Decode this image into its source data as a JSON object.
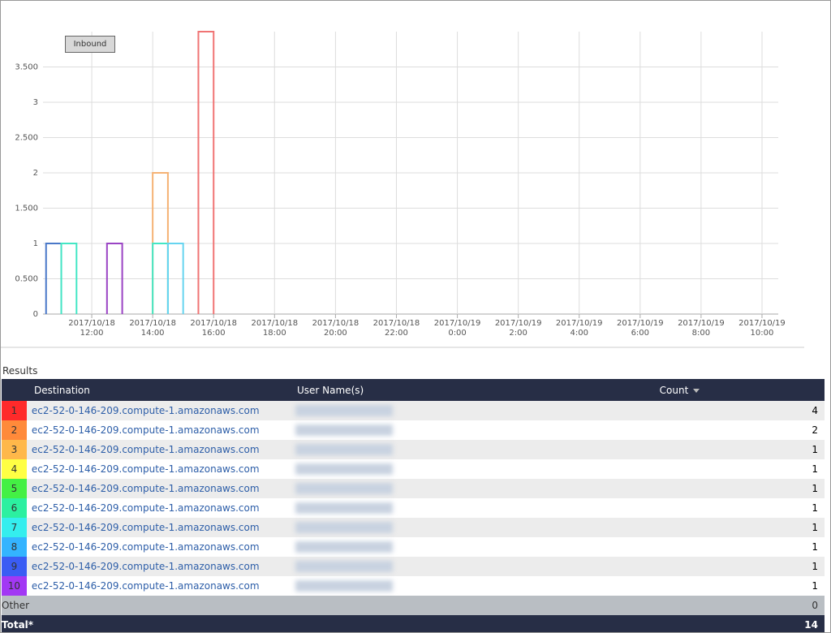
{
  "inbound_button": "Inbound",
  "chart_data": {
    "type": "histogram",
    "xlim": [
      "2017/10/18 10:24",
      "2017/10/19 10:32"
    ],
    "xticks": [
      "2017/10/18 12:00",
      "2017/10/18 14:00",
      "2017/10/18 16:00",
      "2017/10/18 18:00",
      "2017/10/18 20:00",
      "2017/10/18 22:00",
      "2017/10/19 0:00",
      "2017/10/19 2:00",
      "2017/10/19 4:00",
      "2017/10/19 6:00",
      "2017/10/19 8:00",
      "2017/10/19 10:00"
    ],
    "ylim": [
      0,
      4
    ],
    "yticks": [
      0,
      {
        "value": 0.5,
        "label": "0.500"
      },
      1,
      {
        "value": 1.5,
        "label": "1.500"
      },
      2,
      {
        "value": 2.5,
        "label": "2.500"
      },
      3,
      {
        "value": 3.5,
        "label": "3.500"
      }
    ],
    "grid": true,
    "series": [
      {
        "color": "#4a78c8",
        "bins": [
          "2017/10/18 10:30",
          "2017/10/18 11:00"
        ],
        "values": [
          1
        ]
      },
      {
        "color": "#44e6c4",
        "bins": [
          "2017/10/18 11:00",
          "2017/10/18 11:30"
        ],
        "values": [
          1
        ]
      },
      {
        "color": "#9a44c4",
        "bins": [
          "2017/10/18 12:30",
          "2017/10/18 13:00"
        ],
        "values": [
          1
        ]
      },
      {
        "color": "#f5b274",
        "bins": [
          "2017/10/18 14:00",
          "2017/10/18 14:30"
        ],
        "values": [
          2
        ]
      },
      {
        "color": "#44e6c4",
        "bins": [
          "2017/10/18 14:00",
          "2017/10/18 14:30"
        ],
        "values": [
          1
        ]
      },
      {
        "color": "#66d4f0",
        "bins": [
          "2017/10/18 14:30",
          "2017/10/18 15:00"
        ],
        "values": [
          1
        ]
      },
      {
        "color": "#f07474",
        "bins": [
          "2017/10/18 15:30",
          "2017/10/18 16:00"
        ],
        "values": [
          4
        ]
      }
    ]
  },
  "results_label": "Results",
  "table": {
    "columns": [
      "Destination",
      "User Name(s)",
      "Count"
    ],
    "rows": [
      {
        "rank": 1,
        "color": "#ff2a2a",
        "destination": "ec2-52-0-146-209.compute-1.amazonaws.com",
        "count": 4
      },
      {
        "rank": 2,
        "color": "#ff8a3a",
        "destination": "ec2-52-0-146-209.compute-1.amazonaws.com",
        "count": 2
      },
      {
        "rank": 3,
        "color": "#ffb84a",
        "destination": "ec2-52-0-146-209.compute-1.amazonaws.com",
        "count": 1
      },
      {
        "rank": 4,
        "color": "#ffff44",
        "destination": "ec2-52-0-146-209.compute-1.amazonaws.com",
        "count": 1
      },
      {
        "rank": 5,
        "color": "#44f044",
        "destination": "ec2-52-0-146-209.compute-1.amazonaws.com",
        "count": 1
      },
      {
        "rank": 6,
        "color": "#2cf0a0",
        "destination": "ec2-52-0-146-209.compute-1.amazonaws.com",
        "count": 1
      },
      {
        "rank": 7,
        "color": "#34eeee",
        "destination": "ec2-52-0-146-209.compute-1.amazonaws.com",
        "count": 1
      },
      {
        "rank": 8,
        "color": "#34b4ff",
        "destination": "ec2-52-0-146-209.compute-1.amazonaws.com",
        "count": 1
      },
      {
        "rank": 9,
        "color": "#3a5cf4",
        "destination": "ec2-52-0-146-209.compute-1.amazonaws.com",
        "count": 1
      },
      {
        "rank": 10,
        "color": "#a238f4",
        "destination": "ec2-52-0-146-209.compute-1.amazonaws.com",
        "count": 1
      }
    ],
    "other": {
      "label": "Other",
      "count": 0
    },
    "total": {
      "label": "Total*",
      "count": 14
    }
  }
}
